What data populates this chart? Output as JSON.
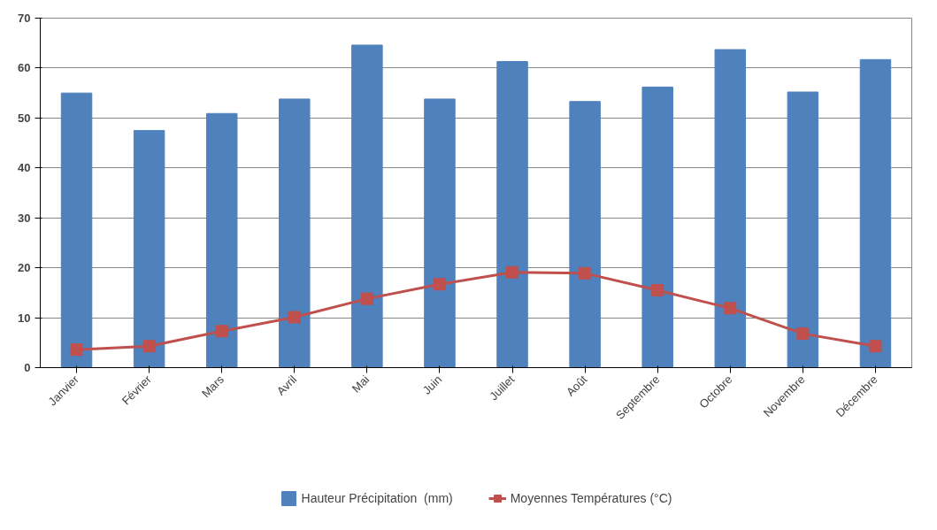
{
  "chart_data": {
    "type": "bar",
    "categories": [
      "Janvier",
      "Février",
      "Mars",
      "Avril",
      "Mai",
      "Juin",
      "Juillet",
      "Août",
      "Septembre",
      "Octobre",
      "Novembre",
      "Décembre"
    ],
    "series": [
      {
        "name": "Hauteur Précipitation  (mm)",
        "color": "#4f81bd",
        "values": [
          55.0,
          47.5,
          50.9,
          53.8,
          64.6,
          53.8,
          61.3,
          53.3,
          56.2,
          63.7,
          55.2,
          61.7
        ]
      },
      {
        "name": "Moyennes Températures (°C)",
        "type": "line",
        "color": "#c0504d",
        "marker": "square",
        "values": [
          3.6,
          4.3,
          7.3,
          10.1,
          13.8,
          16.7,
          19.1,
          18.9,
          15.5,
          11.9,
          6.8,
          4.3
        ]
      }
    ],
    "ylim": [
      0,
      70
    ],
    "yticks": [
      0,
      10,
      20,
      30,
      40,
      50,
      60,
      70
    ],
    "grid": "y",
    "legend": "bottom"
  }
}
